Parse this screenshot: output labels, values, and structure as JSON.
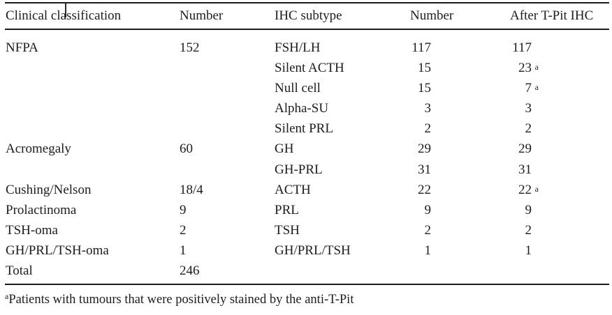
{
  "colors": {
    "background": "#ffffff",
    "text": "#1d1d1d",
    "rule": "#1b1b1b"
  },
  "table": {
    "headers": [
      "Clinical classification",
      "Number",
      "IHC subtype",
      "Number",
      "After T-Pit IHC"
    ],
    "rows": [
      {
        "clinical": "NFPA",
        "number": "152",
        "subtype": "FSH/LH",
        "subtype_number": "117",
        "after": "117",
        "after_sup": ""
      },
      {
        "clinical": "",
        "number": "",
        "subtype": "Silent ACTH",
        "subtype_number": "15",
        "after": "23",
        "after_sup": "a"
      },
      {
        "clinical": "",
        "number": "",
        "subtype": "Null cell",
        "subtype_number": "15",
        "after": "7",
        "after_sup": "a"
      },
      {
        "clinical": "",
        "number": "",
        "subtype": "Alpha-SU",
        "subtype_number": "3",
        "after": "3",
        "after_sup": ""
      },
      {
        "clinical": "",
        "number": "",
        "subtype": "Silent PRL",
        "subtype_number": "2",
        "after": "2",
        "after_sup": ""
      },
      {
        "clinical": "Acromegaly",
        "number": "60",
        "subtype": "GH",
        "subtype_number": "29",
        "after": "29",
        "after_sup": ""
      },
      {
        "clinical": "",
        "number": "",
        "subtype": "GH-PRL",
        "subtype_number": "31",
        "after": "31",
        "after_sup": ""
      },
      {
        "clinical": "Cushing/Nelson",
        "number": "18/4",
        "subtype": "ACTH",
        "subtype_number": "22",
        "after": "22",
        "after_sup": "a"
      },
      {
        "clinical": "Prolactinoma",
        "number": "9",
        "subtype": "PRL",
        "subtype_number": "9",
        "after": "9",
        "after_sup": ""
      },
      {
        "clinical": "TSH-oma",
        "number": "2",
        "subtype": "TSH",
        "subtype_number": "2",
        "after": "2",
        "after_sup": ""
      },
      {
        "clinical": "GH/PRL/TSH-oma",
        "number": "1",
        "subtype": "GH/PRL/TSH",
        "subtype_number": "1",
        "after": "1",
        "after_sup": ""
      },
      {
        "clinical": "Total",
        "number": "246",
        "subtype": "",
        "subtype_number": "",
        "after": "",
        "after_sup": ""
      }
    ],
    "footnote": {
      "marker": "a",
      "text": "Patients with tumours that were positively stained by the anti-T-Pit"
    }
  }
}
